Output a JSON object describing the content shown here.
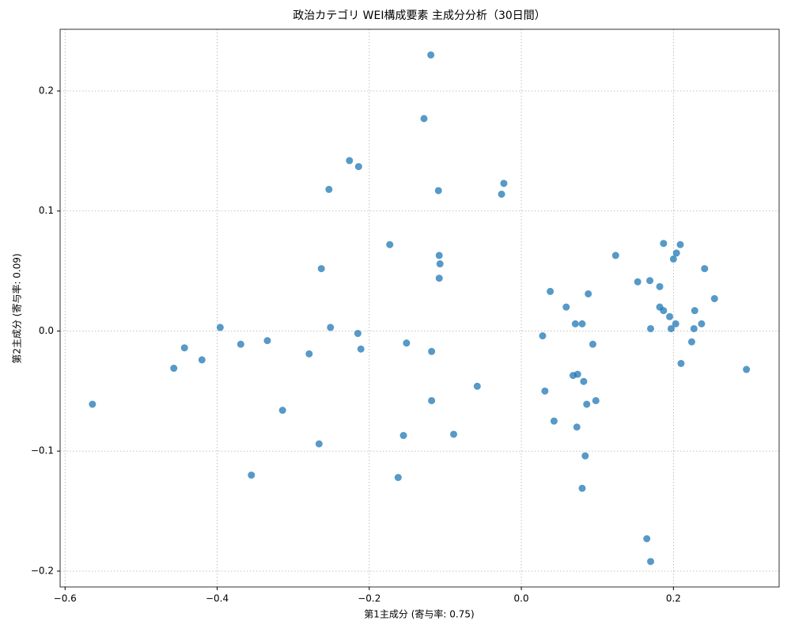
{
  "chart_data": {
    "type": "scatter",
    "title": "政治カテゴリ WEI構成要素 主成分分析（30日間）",
    "x_label": "第1主成分 (寄与率: 0.75)",
    "y_label": "第2主成分 (寄与率: 0.09)",
    "color": "#1f77b4",
    "grid": true,
    "xlim": [
      -0.6065,
      0.339
    ],
    "ylim": [
      -0.2132,
      0.2514
    ],
    "xticks": [
      {
        "value": -0.6,
        "label": "−0.6"
      },
      {
        "value": -0.4,
        "label": "−0.4"
      },
      {
        "value": -0.2,
        "label": "−0.2"
      },
      {
        "value": 0,
        "label": "0.0"
      },
      0.2
    ],
    "yticks": [
      {
        "value": -0.2,
        "label": "−0.2"
      },
      {
        "value": -0.1,
        "label": "−0.1"
      },
      {
        "value": 0,
        "label": "0.0"
      },
      0.1,
      0.2
    ],
    "x": [
      -0.564,
      -0.457,
      -0.443,
      -0.42,
      -0.396,
      -0.369,
      -0.334,
      -0.314,
      -0.355,
      -0.279,
      -0.266,
      -0.263,
      -0.253,
      -0.251,
      -0.226,
      -0.214,
      -0.215,
      -0.211,
      -0.173,
      -0.162,
      -0.155,
      -0.151,
      -0.128,
      -0.119,
      -0.118,
      -0.118,
      -0.109,
      -0.108,
      -0.107,
      -0.108,
      -0.089,
      -0.058,
      -0.026,
      -0.023,
      0.028,
      0.031,
      0.038,
      0.043,
      0.059,
      0.068,
      0.071,
      0.074,
      0.073,
      0.08,
      0.082,
      0.08,
      0.084,
      0.086,
      0.088,
      0.094,
      0.098,
      0.124,
      0.153,
      0.165,
      0.169,
      0.17,
      0.17,
      0.182,
      0.182,
      0.187,
      0.187,
      0.195,
      0.197,
      0.2,
      0.203,
      0.204,
      0.209,
      0.21,
      0.224,
      0.227,
      0.228,
      0.237,
      0.241,
      0.254,
      0.296
    ],
    "values": [
      -0.061,
      -0.031,
      -0.014,
      -0.024,
      0.003,
      -0.011,
      -0.008,
      -0.066,
      -0.12,
      -0.019,
      -0.094,
      0.052,
      0.118,
      0.003,
      0.142,
      0.137,
      -0.002,
      -0.015,
      0.072,
      -0.122,
      -0.087,
      -0.01,
      0.177,
      0.23,
      -0.017,
      -0.058,
      0.117,
      0.063,
      0.056,
      0.044,
      -0.086,
      -0.046,
      0.114,
      0.123,
      -0.004,
      -0.05,
      0.033,
      -0.075,
      0.02,
      -0.037,
      0.006,
      -0.036,
      -0.08,
      0.006,
      -0.042,
      -0.131,
      -0.104,
      -0.061,
      0.031,
      -0.011,
      -0.058,
      0.063,
      0.041,
      -0.173,
      0.042,
      0.002,
      -0.192,
      0.037,
      0.02,
      0.073,
      0.017,
      0.012,
      0.002,
      0.06,
      0.006,
      0.065,
      0.072,
      -0.027,
      -0.009,
      0.002,
      0.017,
      0.006,
      0.052,
      0.027,
      -0.032
    ]
  }
}
